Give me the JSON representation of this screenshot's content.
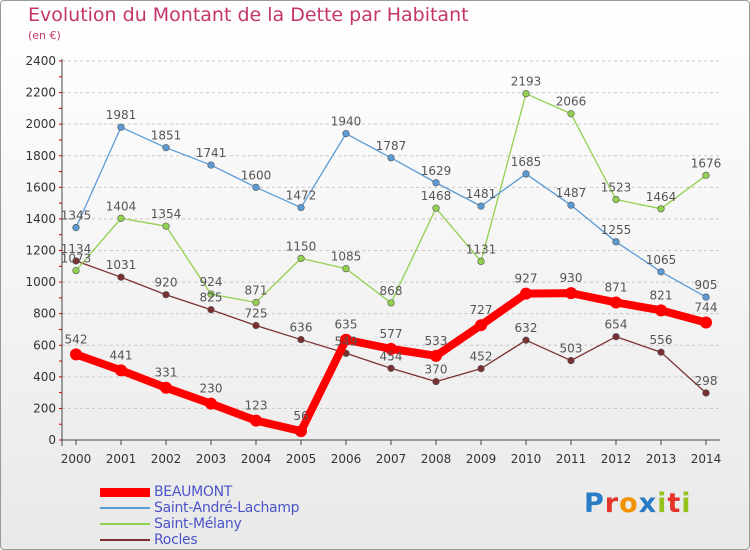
{
  "header": {
    "title": "Evolution du Montant de la Dette par Habitant",
    "subtitle": "(en €)"
  },
  "logo": {
    "text": "Proxiti"
  },
  "colors": {
    "title": "#c5356c",
    "axis_text": "#333333",
    "grid": "#cccccc",
    "legend_text": "#4b55c8"
  },
  "chart_data": {
    "type": "line",
    "title": "Evolution du Montant de la Dette par Habitant",
    "subtitle": "(en €)",
    "x": [
      "2000",
      "2001",
      "2002",
      "2003",
      "2004",
      "2005",
      "2006",
      "2007",
      "2008",
      "2009",
      "2010",
      "2011",
      "2012",
      "2013",
      "2014"
    ],
    "ylim": [
      0,
      2400
    ],
    "yticks": [
      0,
      200,
      400,
      600,
      800,
      1000,
      1200,
      1400,
      1600,
      1800,
      2000,
      2200,
      2400
    ],
    "grid": "horizontal dashed",
    "legend_position": "bottom-left",
    "series": [
      {
        "name": "BEAUMONT",
        "color": "#ff0000",
        "values": [
          542,
          441,
          331,
          230,
          123,
          56,
          635,
          577,
          533,
          727,
          927,
          930,
          871,
          821,
          744
        ]
      },
      {
        "name": "Saint-André-Lachamp",
        "color": "#5b9bd5",
        "values": [
          1345,
          1981,
          1851,
          1741,
          1600,
          1472,
          1940,
          1787,
          1629,
          1481,
          1685,
          1487,
          1255,
          1065,
          905
        ]
      },
      {
        "name": "Saint-Mélany",
        "color": "#92d050",
        "values": [
          1073,
          1404,
          1354,
          924,
          871,
          1150,
          1085,
          868,
          1468,
          1131,
          2193,
          2066,
          1523,
          1464,
          1676
        ]
      },
      {
        "name": "Rocles",
        "color": "#7a3030",
        "values": [
          1134,
          1031,
          920,
          825,
          725,
          636,
          549,
          454,
          370,
          452,
          632,
          503,
          654,
          556,
          298
        ]
      }
    ],
    "label_overrides": {
      "BEAUMONT": {
        "5": "56"
      }
    }
  }
}
